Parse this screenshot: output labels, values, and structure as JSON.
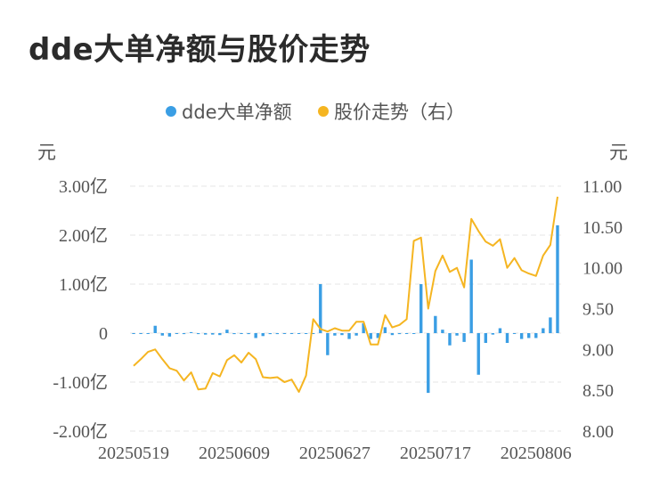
{
  "title": "dde大单净额与股价走势",
  "colors": {
    "bar": "#3a9ee4",
    "line": "#f5b521"
  },
  "chart_data": {
    "type": "bar+line",
    "legend": [
      {
        "name": "dde大单净额",
        "color": "#3a9ee4",
        "shape": "circle"
      },
      {
        "name": "股价走势（右）",
        "color": "#f5b521",
        "shape": "circle"
      }
    ],
    "legend_position": "top-center",
    "y_left": {
      "title": "元",
      "ticks": [
        "3.00亿",
        "2.00亿",
        "1.00亿",
        "0",
        "-1.00亿",
        "-2.00亿"
      ],
      "range": [
        -2.0,
        3.0
      ],
      "unit": "亿元"
    },
    "y_right": {
      "title": "元",
      "ticks": [
        "11.00",
        "10.50",
        "10.00",
        "9.50",
        "9.00",
        "8.50",
        "8.00"
      ],
      "range": [
        8.0,
        11.0
      ]
    },
    "x_ticks": [
      {
        "label": "20250519",
        "index": 0
      },
      {
        "label": "20250609",
        "index": 14
      },
      {
        "label": "20250627",
        "index": 28
      },
      {
        "label": "20250717",
        "index": 42
      },
      {
        "label": "20250806",
        "index": 56
      }
    ],
    "grid": true,
    "series": [
      {
        "name": "dde大单净额",
        "kind": "bar",
        "axis": "left",
        "values": [
          0.0,
          0.0,
          0.0,
          0.15,
          -0.05,
          -0.07,
          0.0,
          -0.02,
          0.02,
          -0.02,
          -0.03,
          -0.03,
          -0.04,
          0.07,
          -0.02,
          0.0,
          -0.02,
          -0.1,
          -0.06,
          -0.02,
          -0.02,
          0.0,
          0.0,
          0.0,
          0.0,
          0.0,
          1.0,
          -0.45,
          -0.05,
          -0.04,
          -0.12,
          -0.05,
          0.2,
          -0.12,
          -0.1,
          0.12,
          -0.04,
          -0.02,
          0.0,
          0.0,
          1.0,
          -1.22,
          0.35,
          0.07,
          -0.25,
          -0.05,
          -0.18,
          1.5,
          -0.85,
          -0.2,
          -0.03,
          0.1,
          -0.2,
          0.0,
          -0.12,
          -0.1,
          -0.1,
          0.1,
          0.32,
          2.2
        ]
      },
      {
        "name": "股价走势（右）",
        "kind": "line",
        "axis": "right",
        "values": [
          8.8,
          8.88,
          8.97,
          9.0,
          8.88,
          8.77,
          8.74,
          8.62,
          8.72,
          8.51,
          8.52,
          8.71,
          8.67,
          8.87,
          8.93,
          8.84,
          8.96,
          8.88,
          8.66,
          8.65,
          8.66,
          8.6,
          8.63,
          8.48,
          8.68,
          9.37,
          9.25,
          9.22,
          9.26,
          9.23,
          9.23,
          9.34,
          9.34,
          9.06,
          9.06,
          9.42,
          9.27,
          9.3,
          9.37,
          10.33,
          10.37,
          9.5,
          9.96,
          10.15,
          9.95,
          10.0,
          9.76,
          10.6,
          10.45,
          10.32,
          10.27,
          10.35,
          10.0,
          10.12,
          9.97,
          9.93,
          9.9,
          10.15,
          10.28,
          10.87
        ]
      }
    ]
  }
}
